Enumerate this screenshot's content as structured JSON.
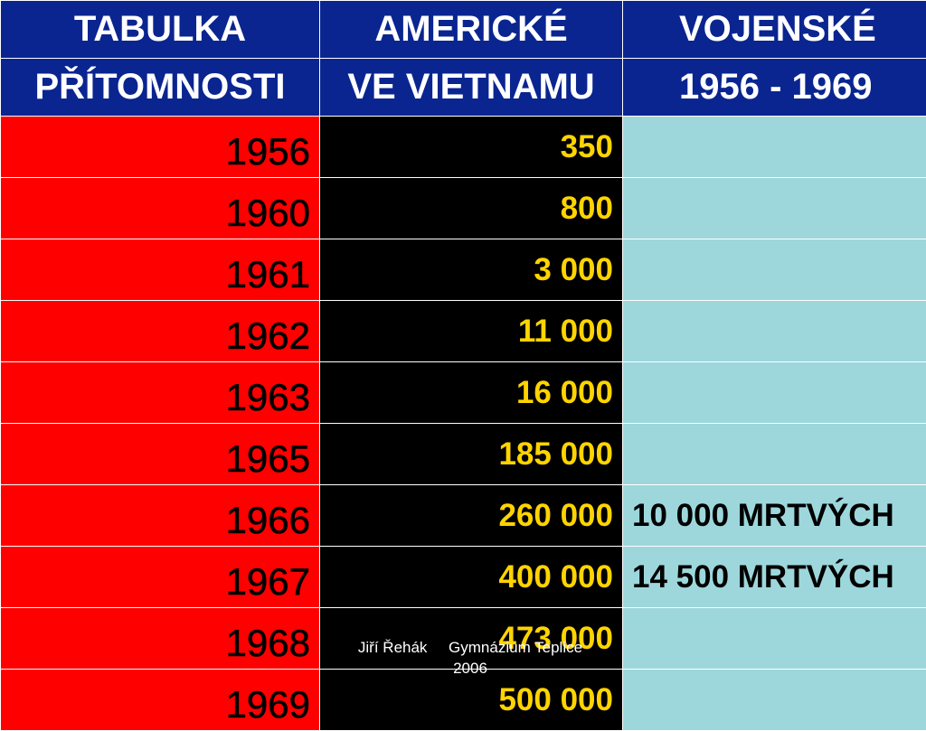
{
  "header": {
    "row1": [
      "TABULKA",
      "AMERICKÉ",
      "VOJENSKÉ"
    ],
    "row2": [
      "PŘÍTOMNOSTI",
      "VE VIETNAMU",
      "1956 - 1969"
    ]
  },
  "rows": [
    {
      "year": "1956",
      "value": "350",
      "note": ""
    },
    {
      "year": "1960",
      "value": "800",
      "note": ""
    },
    {
      "year": "1961",
      "value": "3 000",
      "note": ""
    },
    {
      "year": "1962",
      "value": "11 000",
      "note": ""
    },
    {
      "year": "1963",
      "value": "16 000",
      "note": ""
    },
    {
      "year": "1965",
      "value": "185 000",
      "note": ""
    },
    {
      "year": "1966",
      "value": "260 000",
      "note": "10 000 MRTVÝCH"
    },
    {
      "year": "1967",
      "value": "400 000",
      "note": "14 500 MRTVÝCH"
    },
    {
      "year": "1968",
      "value": "473 000",
      "note": ""
    },
    {
      "year": "1969",
      "value": "500 000",
      "note": ""
    }
  ],
  "footer": {
    "line1": "Jiří Řehák     Gymnázium Teplice",
    "line2": "2006"
  },
  "colors": {
    "header_bg": "#0a2590",
    "year_bg": "#ff0000",
    "value_bg": "#000000",
    "value_text": "#ffd400",
    "note_bg": "#9dd7dc"
  }
}
